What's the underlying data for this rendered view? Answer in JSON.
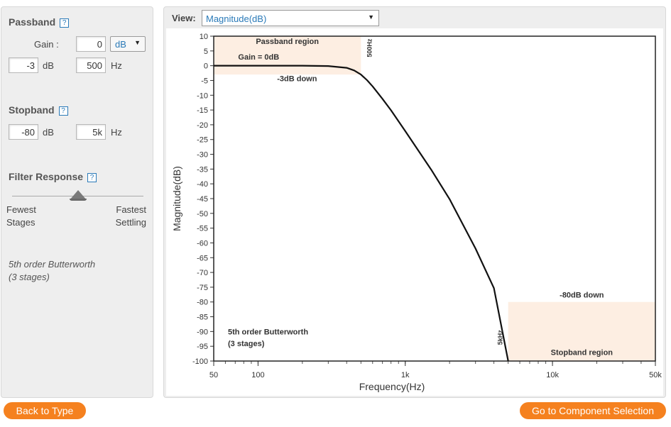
{
  "passband": {
    "title": "Passband",
    "help": "?",
    "gain_label": "Gain :",
    "gain_value": "0",
    "gain_unit": "dB",
    "atten_value": "-3",
    "atten_unit": "dB",
    "freq_value": "500",
    "freq_unit": "Hz"
  },
  "stopband": {
    "title": "Stopband",
    "help": "?",
    "atten_value": "-80",
    "atten_unit": "dB",
    "freq_value": "5k",
    "freq_unit": "Hz"
  },
  "filter_response": {
    "title": "Filter Response",
    "help": "?",
    "left_label_1": "Fewest",
    "left_label_2": "Stages",
    "right_label_1": "Fastest",
    "right_label_2": "Settling",
    "slider_fraction": 0.5
  },
  "summary": {
    "line1": "5th order Butterworth",
    "line2": "(3 stages)"
  },
  "view": {
    "label": "View:",
    "selected": "Magnitude(dB)"
  },
  "buttons": {
    "back": "Back to Type",
    "next": "Go to Component Selection"
  },
  "colors": {
    "accent": "#f5811f",
    "region_fill": "#fdeee2",
    "link_blue": "#2a7ab8"
  },
  "chart_data": {
    "type": "line",
    "xscale": "log",
    "xlabel": "Frequency(Hz)",
    "ylabel": "Magnitude(dB)",
    "xlim": [
      50,
      50000
    ],
    "ylim": [
      -100,
      10
    ],
    "x_ticks": [
      50,
      100,
      1000,
      10000,
      50000
    ],
    "x_tick_labels": [
      "50",
      "100",
      "1k",
      "10k",
      "50k"
    ],
    "y_ticks": [
      10,
      5,
      0,
      -5,
      -10,
      -15,
      -20,
      -25,
      -30,
      -35,
      -40,
      -45,
      -50,
      -55,
      -60,
      -65,
      -70,
      -75,
      -80,
      -85,
      -90,
      -95,
      -100
    ],
    "series": [
      {
        "x": [
          50,
          100,
          200,
          300,
          400,
          450,
          500,
          550,
          600,
          700,
          800,
          1000,
          1500,
          2000,
          3000,
          4000,
          5000
        ],
        "y": [
          0,
          0,
          0,
          -0.1,
          -0.7,
          -1.6,
          -3.0,
          -4.9,
          -7.0,
          -11.2,
          -15.1,
          -22.1,
          -35.2,
          -45.2,
          -61.9,
          -75.3,
          -100
        ]
      }
    ],
    "regions": [
      {
        "name": "Passband region",
        "x": [
          50,
          500
        ],
        "y": [
          -3,
          10
        ]
      },
      {
        "name": "Stopband region",
        "x": [
          5000,
          50000
        ],
        "y": [
          -100,
          -80
        ]
      }
    ],
    "annotations": {
      "passband_region": "Passband region",
      "gain": "Gain = 0dB",
      "minus3": "-3dB down",
      "f_pass": "500Hz",
      "minus80": "-80dB down",
      "f_stop": "5kHz",
      "stopband_region": "Stopband region",
      "order_line1": "5th order Butterworth",
      "order_line2": "(3 stages)"
    }
  }
}
